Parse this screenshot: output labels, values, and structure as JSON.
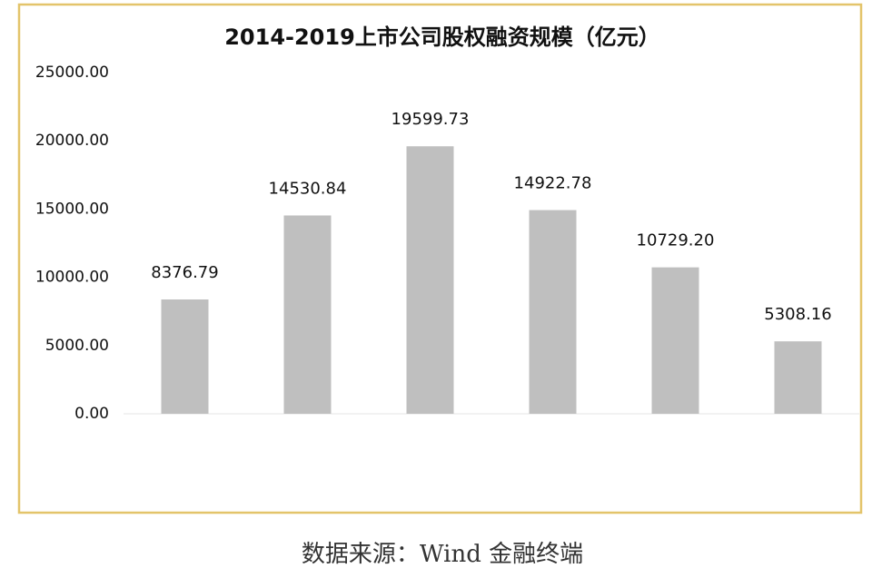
{
  "chart_data": {
    "type": "bar",
    "title": "2014-2019上市公司股权融资规模（亿元）",
    "source": "数据来源：Wind 金融终端",
    "categories": [
      null,
      null,
      null,
      null,
      null,
      null
    ],
    "values": [
      8376.79,
      14530.84,
      19599.73,
      14922.78,
      10729.2,
      5308.16
    ],
    "value_labels": [
      "8376.79",
      "14530.84",
      "19599.73",
      "14922.78",
      "10729.20",
      "5308.16"
    ],
    "color": "#bfbfbf",
    "ylim": [
      0,
      25000
    ],
    "yticks": [
      {
        "value": 0,
        "label": "0.00"
      },
      {
        "value": 5000,
        "label": "5000.00"
      },
      {
        "value": 10000,
        "label": "10000.00"
      },
      {
        "value": 15000,
        "label": "15000.00"
      },
      {
        "value": 20000,
        "label": "20000.00"
      },
      {
        "value": 25000,
        "label": "25000.00"
      }
    ],
    "grid": false
  }
}
